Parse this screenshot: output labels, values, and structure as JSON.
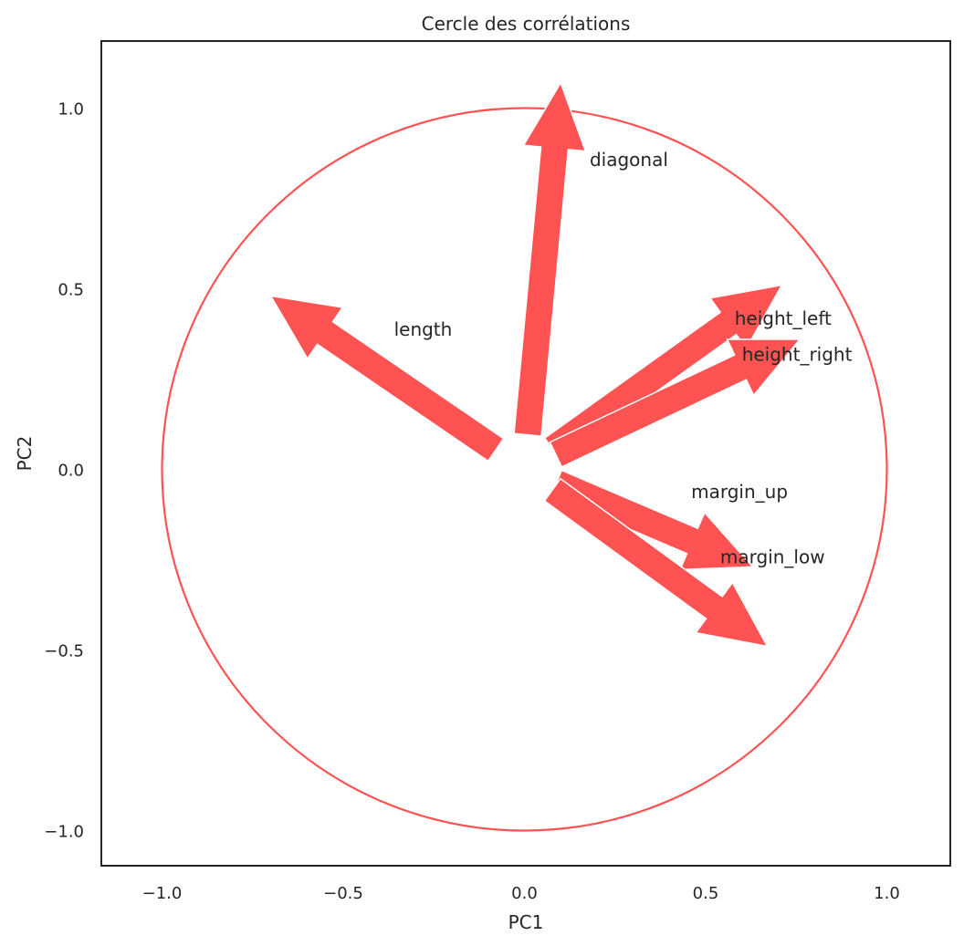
{
  "chart_data": {
    "type": "scatter",
    "title": "Cercle des corrélations",
    "xlabel": "PC1",
    "ylabel": "PC2",
    "xlim": [
      -1.17,
      1.17
    ],
    "ylim": [
      -1.1,
      1.18
    ],
    "xticks": [
      -1.0,
      -0.5,
      0.0,
      0.5,
      1.0
    ],
    "yticks": [
      -1.0,
      -0.5,
      0.0,
      0.5,
      1.0
    ],
    "xtick_labels": [
      "−1.0",
      "−0.5",
      "0.0",
      "0.5",
      "1.0"
    ],
    "ytick_labels": [
      "−1.0",
      "−0.5",
      "0.0",
      "0.5",
      "1.0"
    ],
    "grid": false,
    "circle_radius": 1.0,
    "color": "#ff5252",
    "series": [
      {
        "name": "diagonal",
        "values": [
          0.1,
          1.07
        ]
      },
      {
        "name": "length",
        "values": [
          -0.7,
          0.48
        ]
      },
      {
        "name": "height_left",
        "values": [
          0.71,
          0.51
        ]
      },
      {
        "name": "height_right",
        "values": [
          0.76,
          0.36
        ]
      },
      {
        "name": "margin_up",
        "values": [
          0.63,
          -0.27
        ]
      },
      {
        "name": "margin_low",
        "values": [
          0.67,
          -0.49
        ]
      }
    ],
    "labels": [
      {
        "text": "diagonal",
        "x": 0.18,
        "y": 0.84
      },
      {
        "text": "length",
        "x": -0.36,
        "y": 0.37
      },
      {
        "text": "height_left",
        "x": 0.58,
        "y": 0.4
      },
      {
        "text": "height_right",
        "x": 0.6,
        "y": 0.3
      },
      {
        "text": "margin_up",
        "x": 0.46,
        "y": -0.08
      },
      {
        "text": "margin_low",
        "x": 0.54,
        "y": -0.26
      }
    ]
  }
}
